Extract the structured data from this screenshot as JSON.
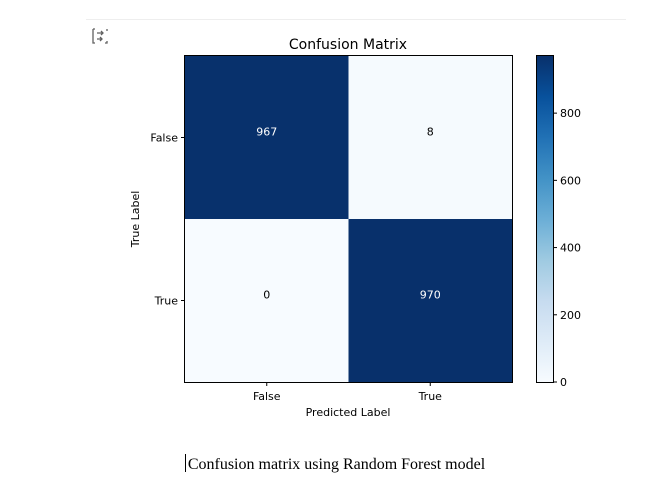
{
  "chart_data": {
    "type": "heatmap",
    "title": "Confusion Matrix",
    "xlabel": "Predicted Label",
    "ylabel": "True Label",
    "x_categories": [
      "False",
      "True"
    ],
    "y_categories": [
      "False",
      "True"
    ],
    "values": [
      [
        967,
        8
      ],
      [
        0,
        970
      ]
    ],
    "colormap": "Blues",
    "colorbar": {
      "ticks": [
        0,
        200,
        400,
        600,
        800
      ],
      "range": [
        0,
        970
      ]
    }
  },
  "caption": "Confusion matrix using Random Forest model",
  "icons": {
    "output": "output-toggle-icon"
  },
  "colors": {
    "high": "#08306b",
    "low": "#f7fbff",
    "text_on_dark": "#ffffff",
    "text_on_light": "#000000"
  }
}
